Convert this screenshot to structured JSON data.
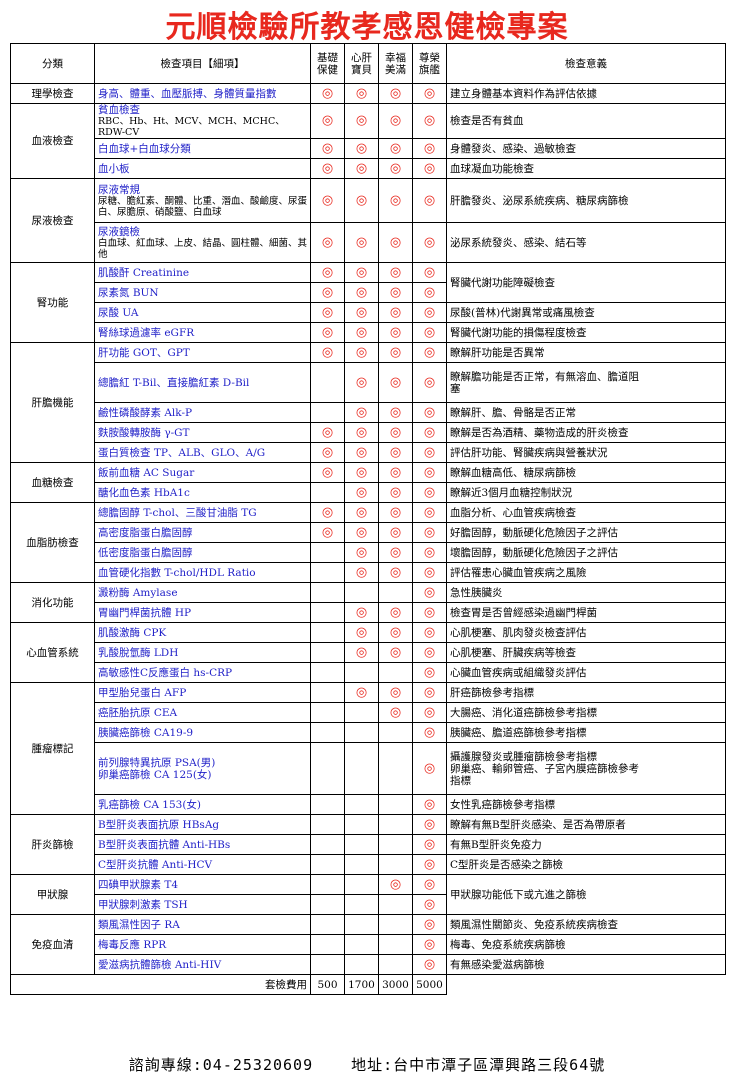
{
  "title": "元順檢驗所教孝感恩健檢專案",
  "header": {
    "category": "分類",
    "items": "檢查項目【細項】",
    "packages": [
      [
        "基礎",
        "保健"
      ],
      [
        "心肝",
        "寶貝"
      ],
      [
        "幸福",
        "美滿"
      ],
      [
        "尊榮",
        "旗艦"
      ]
    ],
    "meaning": "檢查意義"
  },
  "mark_symbol": "◎",
  "rows": [
    {
      "cat": "理學檢查",
      "item": [
        "身高、體重、血壓脈搏、身體質量指數"
      ],
      "m": [
        1,
        1,
        1,
        1
      ],
      "mean": [
        "建立身體基本資料作為評估依據"
      ]
    },
    {
      "cat": "血液檢查",
      "item": [
        "貧血檢查"
      ],
      "sub": "RBC、Hb、Ht、MCV、MCH、MCHC、RDW-CV",
      "m": [
        1,
        1,
        1,
        1
      ],
      "mean": [
        "檢查是否有貧血"
      ]
    },
    {
      "item": [
        "白血球+白血球分類"
      ],
      "m": [
        1,
        1,
        1,
        1
      ],
      "mean": [
        "身體發炎、感染、過敏檢查"
      ]
    },
    {
      "item": [
        "血小板"
      ],
      "m": [
        1,
        1,
        1,
        1
      ],
      "mean": [
        "血球凝血功能檢查"
      ]
    },
    {
      "cat": "尿液檢查",
      "item": [
        "尿液常規"
      ],
      "sub": "尿糖、膽紅素、酮體、比重、潛血、酸鹼度、尿蛋白、尿膽原、硝酸鹽、白血球",
      "m": [
        1,
        1,
        1,
        1
      ],
      "mean": [
        "肝膽發炎、泌尿系統疾病、糖尿病篩檢"
      ]
    },
    {
      "item": [
        "尿液鏡檢"
      ],
      "sub": "白血球、紅血球、上皮、結晶、圓柱體、細菌、其他",
      "m": [
        1,
        1,
        1,
        1
      ],
      "mean": [
        "泌尿系統發炎、感染、結石等"
      ]
    },
    {
      "cat": "腎功能",
      "item": [
        "肌酸酐 Creatinine"
      ],
      "m": [
        1,
        1,
        1,
        1
      ],
      "mean": [
        "腎臟代謝功能障礙檢查"
      ],
      "meanSpan": 2
    },
    {
      "item": [
        "尿素氮 BUN"
      ],
      "m": [
        1,
        1,
        1,
        1
      ]
    },
    {
      "item": [
        "尿酸 UA"
      ],
      "m": [
        1,
        1,
        1,
        1
      ],
      "mean": [
        "尿酸(普林)代謝異常或痛風檢查"
      ]
    },
    {
      "item": [
        "腎絲球過濾率 eGFR"
      ],
      "m": [
        1,
        1,
        1,
        1
      ],
      "mean": [
        "腎臟代謝功能的損傷程度檢查"
      ]
    },
    {
      "cat": "肝膽機能",
      "item": [
        "肝功能 GOT、GPT"
      ],
      "m": [
        1,
        1,
        1,
        1
      ],
      "mean": [
        "瞭解肝功能是否異常"
      ]
    },
    {
      "item": [
        "總膽紅 T-Bil、直接膽紅素 D-Bil"
      ],
      "m": [
        0,
        1,
        1,
        1
      ],
      "mean": [
        "瞭解膽功能是否正常，有無溶血、膽道阻",
        "塞"
      ]
    },
    {
      "item": [
        "鹼性磷酸酵素 Alk-P"
      ],
      "m": [
        0,
        1,
        1,
        1
      ],
      "mean": [
        "瞭解肝、膽、骨骼是否正常"
      ]
    },
    {
      "item": [
        "麩胺酸轉胺酶 γ-GT"
      ],
      "m": [
        1,
        1,
        1,
        1
      ],
      "mean": [
        "瞭解是否為酒精、藥物造成的肝炎檢查"
      ]
    },
    {
      "item": [
        "蛋白質檢查 TP、ALB、GLO、A/G"
      ],
      "m": [
        1,
        1,
        1,
        1
      ],
      "mean": [
        "評估肝功能、腎臟疾病與營養狀況"
      ]
    },
    {
      "cat": "血糖檢查",
      "item": [
        "飯前血糖 AC Sugar"
      ],
      "m": [
        1,
        1,
        1,
        1
      ],
      "mean": [
        "瞭解血糖高低、糖尿病篩檢"
      ]
    },
    {
      "item": [
        "醣化血色素 HbA1c"
      ],
      "m": [
        0,
        1,
        1,
        1
      ],
      "mean": [
        "瞭解近3個月血糖控制狀況"
      ]
    },
    {
      "cat": "血脂肪檢查",
      "item": [
        "總膽固醇 T-chol、三酸甘油脂 TG"
      ],
      "m": [
        1,
        1,
        1,
        1
      ],
      "mean": [
        "血脂分析、心血管疾病檢查"
      ]
    },
    {
      "item": [
        "高密度脂蛋白膽固醇"
      ],
      "m": [
        1,
        1,
        1,
        1
      ],
      "mean": [
        "好膽固醇，動脈硬化危險因子之評估"
      ]
    },
    {
      "item": [
        "低密度脂蛋白膽固醇"
      ],
      "m": [
        0,
        1,
        1,
        1
      ],
      "mean": [
        "壞膽固醇，動脈硬化危險因子之評估"
      ]
    },
    {
      "item": [
        "血管硬化指數 T-chol/HDL Ratio"
      ],
      "m": [
        0,
        1,
        1,
        1
      ],
      "mean": [
        "評估罹患心臟血管疾病之風險"
      ]
    },
    {
      "cat": "消化功能",
      "item": [
        "澱粉酶 Amylase"
      ],
      "m": [
        0,
        0,
        0,
        1
      ],
      "mean": [
        "急性胰臟炎"
      ]
    },
    {
      "item": [
        "胃幽門桿菌抗體 HP"
      ],
      "m": [
        0,
        1,
        1,
        1
      ],
      "mean": [
        "檢查胃是否曾經感染過幽門桿菌"
      ]
    },
    {
      "cat": "心血管系統",
      "item": [
        "肌酸激酶 CPK"
      ],
      "m": [
        0,
        1,
        1,
        1
      ],
      "mean": [
        "心肌梗塞、肌肉發炎檢查評估"
      ]
    },
    {
      "item": [
        "乳酸脫氫酶 LDH"
      ],
      "m": [
        0,
        1,
        1,
        1
      ],
      "mean": [
        "心肌梗塞、肝臟疾病等檢查"
      ]
    },
    {
      "item": [
        "高敏感性C反應蛋白 hs-CRP"
      ],
      "m": [
        0,
        0,
        0,
        1
      ],
      "mean": [
        "心臟血管疾病或組織發炎評估"
      ]
    },
    {
      "cat": "腫瘤標記",
      "item": [
        "甲型胎兒蛋白 AFP"
      ],
      "m": [
        0,
        1,
        1,
        1
      ],
      "mean": [
        "肝癌篩檢參考指標"
      ]
    },
    {
      "item": [
        "癌胚胎抗原 CEA"
      ],
      "m": [
        0,
        0,
        1,
        1
      ],
      "mean": [
        "大腸癌、消化道癌篩檢參考指標"
      ]
    },
    {
      "item": [
        "胰臟癌篩檢 CA19-9"
      ],
      "m": [
        0,
        0,
        0,
        1
      ],
      "mean": [
        "胰臟癌、膽道癌篩檢參考指標"
      ]
    },
    {
      "item": [
        "前列腺特異抗原 PSA(男)",
        "卵巢癌篩檢 CA 125(女)"
      ],
      "m": [
        0,
        0,
        0,
        1
      ],
      "mean": [
        "攝護腺發炎或腫瘤篩檢參考指標",
        "卵巢癌、輸卵管癌、子宮內膜癌篩檢參考",
        "指標"
      ]
    },
    {
      "item": [
        "乳癌篩檢 CA 153(女)"
      ],
      "m": [
        0,
        0,
        0,
        1
      ],
      "mean": [
        "女性乳癌篩檢參考指標"
      ]
    },
    {
      "cat": "肝炎篩檢",
      "item": [
        "B型肝炎表面抗原 HBsAg"
      ],
      "m": [
        0,
        0,
        0,
        1
      ],
      "mean": [
        "瞭解有無B型肝炎感染、是否為帶原者"
      ]
    },
    {
      "item": [
        "B型肝炎表面抗體 Anti-HBs"
      ],
      "m": [
        0,
        0,
        0,
        1
      ],
      "mean": [
        "有無B型肝炎免疫力"
      ]
    },
    {
      "item": [
        "C型肝炎抗體 Anti-HCV"
      ],
      "m": [
        0,
        0,
        0,
        1
      ],
      "mean": [
        "C型肝炎是否感染之篩檢"
      ]
    },
    {
      "cat": "甲狀腺",
      "item": [
        "四碘甲狀腺素 T4"
      ],
      "m": [
        0,
        0,
        1,
        1
      ],
      "mean": [
        "甲狀腺功能低下或亢進之篩檢"
      ],
      "meanSpan": 2
    },
    {
      "item": [
        "甲狀腺刺激素 TSH"
      ],
      "m": [
        0,
        0,
        0,
        1
      ]
    },
    {
      "cat": "免疫血清",
      "item": [
        "類風濕性因子 RA"
      ],
      "m": [
        0,
        0,
        0,
        1
      ],
      "mean": [
        "類風濕性關節炎、免疫系統疾病檢查"
      ]
    },
    {
      "item": [
        "梅毒反應 RPR"
      ],
      "m": [
        0,
        0,
        0,
        1
      ],
      "mean": [
        "梅毒、免疫系統疾病篩檢"
      ]
    },
    {
      "item": [
        "愛滋病抗體篩檢 Anti-HIV"
      ],
      "m": [
        0,
        0,
        0,
        1
      ],
      "mean": [
        "有無感染愛滋病篩檢"
      ]
    }
  ],
  "footer_row": {
    "label": "套檢費用",
    "prices": [
      "500",
      "1700",
      "3000",
      "5000"
    ]
  },
  "footer": {
    "phone": "諮詢專線:04-25320609",
    "address": "地址:台中市潭子區潭興路三段64號"
  }
}
